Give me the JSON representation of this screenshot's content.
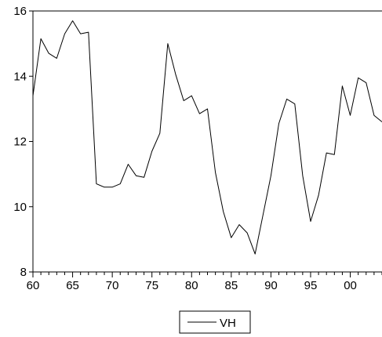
{
  "chart_data": {
    "type": "line",
    "title": "",
    "xlabel": "",
    "ylabel": "",
    "x": [
      1960,
      1961,
      1962,
      1963,
      1964,
      1965,
      1966,
      1967,
      1968,
      1969,
      1970,
      1971,
      1972,
      1973,
      1974,
      1975,
      1976,
      1977,
      1978,
      1979,
      1980,
      1981,
      1982,
      1983,
      1984,
      1985,
      1986,
      1987,
      1988,
      1989,
      1990,
      1991,
      1992,
      1993,
      1994,
      1995,
      1996,
      1997,
      1998,
      1999,
      2000,
      2001,
      2002,
      2003,
      2004
    ],
    "series": [
      {
        "name": "VH",
        "values": [
          13.4,
          15.15,
          14.7,
          14.55,
          15.3,
          15.7,
          15.3,
          15.35,
          10.7,
          10.6,
          10.6,
          10.7,
          11.3,
          10.95,
          10.9,
          11.7,
          12.25,
          15.0,
          14.05,
          13.25,
          13.4,
          12.85,
          13.0,
          11.05,
          9.85,
          9.05,
          9.45,
          9.2,
          8.55,
          9.75,
          10.95,
          12.55,
          13.3,
          13.15,
          10.95,
          9.55,
          10.35,
          11.65,
          11.6,
          13.7,
          12.8,
          13.95,
          13.8,
          12.8,
          12.6
        ]
      }
    ],
    "xlim": [
      1960,
      2004
    ],
    "ylim": [
      8,
      16
    ],
    "x_ticks": [
      {
        "value": 1960,
        "label": "60"
      },
      {
        "value": 1965,
        "label": "65"
      },
      {
        "value": 1970,
        "label": "70"
      },
      {
        "value": 1975,
        "label": "75"
      },
      {
        "value": 1980,
        "label": "80"
      },
      {
        "value": 1985,
        "label": "85"
      },
      {
        "value": 1990,
        "label": "90"
      },
      {
        "value": 1995,
        "label": "95"
      },
      {
        "value": 2000,
        "label": "00"
      }
    ],
    "y_ticks": [
      {
        "value": 8,
        "label": "8"
      },
      {
        "value": 10,
        "label": "10"
      },
      {
        "value": 12,
        "label": "12"
      },
      {
        "value": 14,
        "label": "14"
      },
      {
        "value": 16,
        "label": "16"
      }
    ],
    "grid": false,
    "legend": {
      "placement": "bottom-center",
      "entries": [
        "VH"
      ]
    },
    "colors": {
      "line": "#000000",
      "axis": "#000000",
      "background": "#ffffff"
    }
  }
}
